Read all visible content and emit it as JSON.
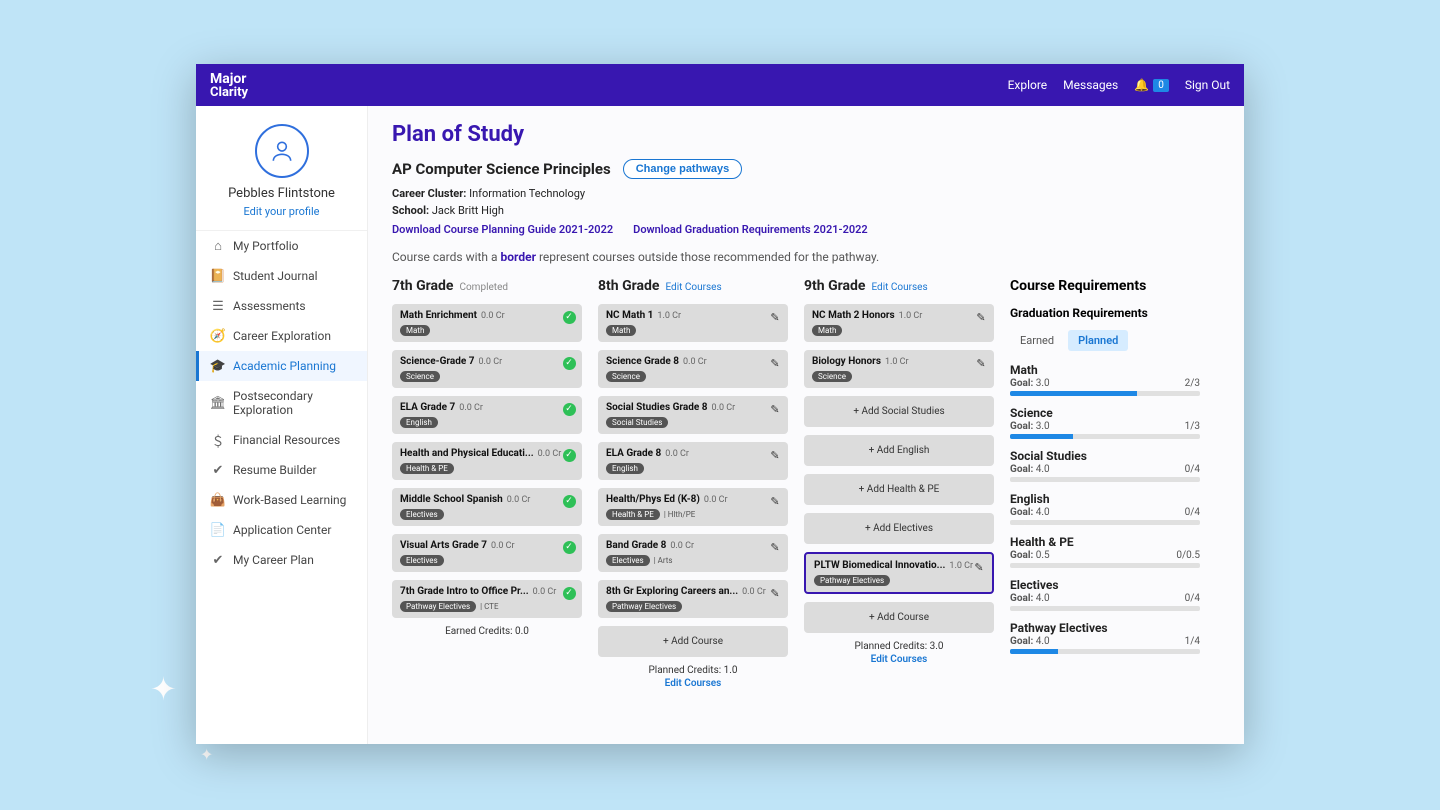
{
  "topbar": {
    "logo_line1": "Major",
    "logo_line2": "Clarity",
    "explore": "Explore",
    "messages": "Messages",
    "notif_count": "0",
    "signout": "Sign Out"
  },
  "profile": {
    "name": "Pebbles Flintstone",
    "edit": "Edit your profile"
  },
  "nav": [
    {
      "label": "My Portfolio",
      "icon": "⌂"
    },
    {
      "label": "Student Journal",
      "icon": "📔"
    },
    {
      "label": "Assessments",
      "icon": "☰"
    },
    {
      "label": "Career Exploration",
      "icon": "🧭"
    },
    {
      "label": "Academic Planning",
      "icon": "🎓",
      "active": true
    },
    {
      "label": "Postsecondary Exploration",
      "icon": "🏛"
    },
    {
      "label": "Financial Resources",
      "icon": "＄"
    },
    {
      "label": "Resume Builder",
      "icon": "✔"
    },
    {
      "label": "Work-Based Learning",
      "icon": "👜"
    },
    {
      "label": "Application Center",
      "icon": "📄"
    },
    {
      "label": "My Career Plan",
      "icon": "✔"
    }
  ],
  "page": {
    "title": "Plan of Study",
    "pathway": "AP Computer Science Principles",
    "change_btn": "Change pathways",
    "cluster_label": "Career Cluster:",
    "cluster_value": "Information Technology",
    "school_label": "School:",
    "school_value": "Jack Britt High",
    "dl1": "Download Course Planning Guide 2021-2022",
    "dl2": "Download Graduation Requirements 2021-2022",
    "hint_pre": "Course cards with a ",
    "hint_b": "border",
    "hint_post": " represent courses outside those recommended for the pathway."
  },
  "grades": {
    "g7": {
      "title": "7th Grade",
      "sub": "Completed",
      "footer": "Earned Credits: 0.0",
      "courses": [
        {
          "t": "Math Enrichment",
          "cr": "0.0 Cr",
          "tag": "Math"
        },
        {
          "t": "Science-Grade 7",
          "cr": "0.0 Cr",
          "tag": "Science"
        },
        {
          "t": "ELA Grade 7",
          "cr": "0.0 Cr",
          "tag": "English"
        },
        {
          "t": "Health and Physical Educati...",
          "cr": "0.0 Cr",
          "tag": "Health & PE"
        },
        {
          "t": "Middle School Spanish",
          "cr": "0.0 Cr",
          "tag": "Electives"
        },
        {
          "t": "Visual Arts Grade 7",
          "cr": "0.0 Cr",
          "tag": "Electives"
        },
        {
          "t": "7th Grade Intro to Office Pr...",
          "cr": "0.0 Cr",
          "tag": "Pathway Electives",
          "sub": "CTE"
        }
      ]
    },
    "g8": {
      "title": "8th Grade",
      "sub": "Edit Courses",
      "footer": "Planned Credits: 1.0",
      "footer_link": "Edit Courses",
      "courses": [
        {
          "t": "NC Math 1",
          "cr": "1.0 Cr",
          "tag": "Math"
        },
        {
          "t": "Science Grade 8",
          "cr": "0.0 Cr",
          "tag": "Science"
        },
        {
          "t": "Social Studies Grade 8",
          "cr": "0.0 Cr",
          "tag": "Social Studies"
        },
        {
          "t": "ELA Grade 8",
          "cr": "0.0 Cr",
          "tag": "English"
        },
        {
          "t": "Health/Phys Ed (K-8)",
          "cr": "0.0 Cr",
          "tag": "Health & PE",
          "sub": "Hlth/PE"
        },
        {
          "t": "Band Grade 8",
          "cr": "0.0 Cr",
          "tag": "Electives",
          "sub": "Arts"
        },
        {
          "t": "8th Gr Exploring Careers an...",
          "cr": "0.0 Cr",
          "tag": "Pathway Electives"
        }
      ],
      "add": "+  Add Course"
    },
    "g9": {
      "title": "9th Grade",
      "sub": "Edit Courses",
      "footer": "Planned Credits: 3.0",
      "footer_link": "Edit Courses",
      "courses": [
        {
          "t": "NC Math 2 Honors",
          "cr": "1.0 Cr",
          "tag": "Math"
        },
        {
          "t": "Biology Honors",
          "cr": "1.0 Cr",
          "tag": "Science"
        }
      ],
      "placeholders": [
        "+  Add Social Studies",
        "+  Add English",
        "+  Add Health & PE",
        "+  Add Electives"
      ],
      "bordered": {
        "t": "PLTW Biomedical Innovatio...",
        "cr": "1.0 Cr",
        "tag": "Pathway Electives"
      },
      "add": "+  Add Course"
    }
  },
  "req": {
    "title": "Course Requirements",
    "sub": "Graduation Requirements",
    "tab_earned": "Earned",
    "tab_planned": "Planned",
    "rows": [
      {
        "name": "Math",
        "goal": "3.0",
        "ratio": "2/3",
        "pct": 67
      },
      {
        "name": "Science",
        "goal": "3.0",
        "ratio": "1/3",
        "pct": 33
      },
      {
        "name": "Social Studies",
        "goal": "4.0",
        "ratio": "0/4",
        "pct": 0
      },
      {
        "name": "English",
        "goal": "4.0",
        "ratio": "0/4",
        "pct": 0
      },
      {
        "name": "Health & PE",
        "goal": "0.5",
        "ratio": "0/0.5",
        "pct": 0
      },
      {
        "name": "Electives",
        "goal": "4.0",
        "ratio": "0/4",
        "pct": 0
      },
      {
        "name": "Pathway Electives",
        "goal": "4.0",
        "ratio": "1/4",
        "pct": 25
      }
    ],
    "goal_label": "Goal:"
  }
}
